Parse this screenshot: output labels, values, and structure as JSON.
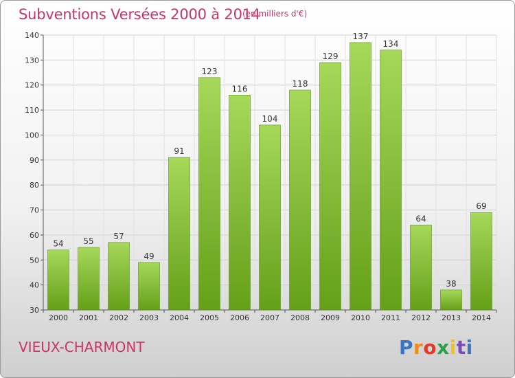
{
  "header": {
    "title": "Subventions Versées 2000 à 2014",
    "unit": "(en milliers d'€)"
  },
  "footer": {
    "place": "VIEUX-CHARMONT"
  },
  "logo": {
    "text": "Proxiti",
    "colors": [
      "#3a74c4",
      "#f08a1c",
      "#e23a2a",
      "#2e9e48",
      "#f0c21c",
      "#7a4fb0",
      "#3a74c4"
    ]
  },
  "colors": {
    "bar": "#8cc43f",
    "bar_light": "#a6d85a",
    "bar_dark": "#6a9e22",
    "title": "#cc3366"
  },
  "chart_data": {
    "type": "bar",
    "title": "Subventions Versées 2000 à 2014",
    "ylabel": "",
    "xlabel": "",
    "ylim": [
      30,
      140
    ],
    "yticks": [
      30,
      40,
      50,
      60,
      70,
      80,
      90,
      100,
      110,
      120,
      130,
      140
    ],
    "grid": true,
    "categories": [
      "2000",
      "2001",
      "2002",
      "2003",
      "2004",
      "2005",
      "2006",
      "2007",
      "2008",
      "2009",
      "2010",
      "2011",
      "2012",
      "2013",
      "2014"
    ],
    "values": [
      54,
      55,
      57,
      49,
      91,
      123,
      116,
      104,
      118,
      129,
      137,
      134,
      64,
      38,
      69
    ]
  }
}
